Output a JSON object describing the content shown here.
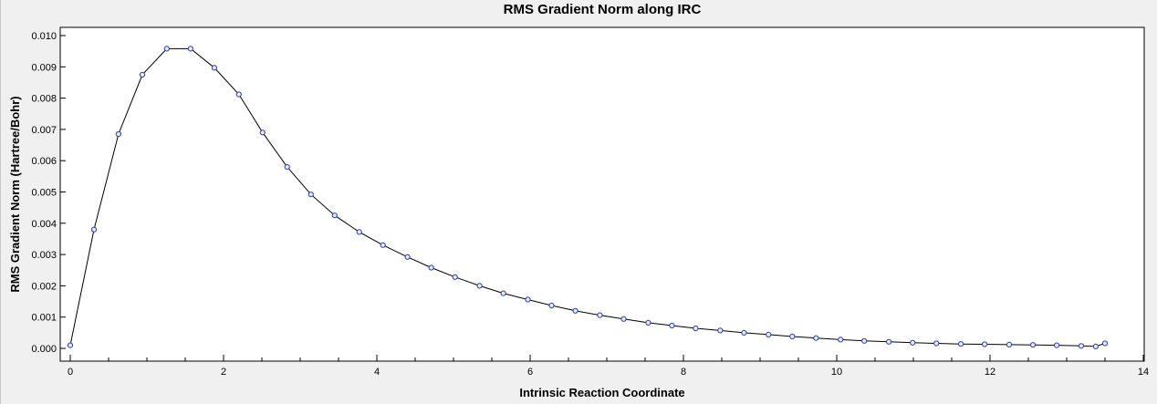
{
  "chart_data": {
    "type": "line",
    "title": "RMS Gradient Norm along IRC",
    "xlabel": "Intrinsic Reaction Coordinate",
    "ylabel": "RMS Gradient Norm (Hartree/Bohr)",
    "xlim": [
      0,
      14
    ],
    "ylim": [
      0,
      0.01
    ],
    "x_ticks": [
      0,
      2,
      4,
      6,
      8,
      10,
      12,
      14
    ],
    "x_minor_tick_step": 0.5,
    "y_ticks": [
      0.0,
      0.001,
      0.002,
      0.003,
      0.004,
      0.005,
      0.006,
      0.007,
      0.008,
      0.009,
      0.01
    ],
    "y_tick_decimals": 3,
    "grid": false,
    "legend_position": "none",
    "colors": {
      "background": "#f0f0f0",
      "plot_background": "#ffffff",
      "frame": "#000000",
      "line": "#000000",
      "marker_stroke": "#2a3cb0",
      "marker_fill": "#e6ecff",
      "tick_text": "#000000"
    },
    "series": [
      {
        "name": "RMS Gradient Norm",
        "marker": "circle",
        "x": [
          0.0,
          0.31,
          0.63,
          0.94,
          1.26,
          1.57,
          1.88,
          2.2,
          2.51,
          2.83,
          3.14,
          3.45,
          3.77,
          4.08,
          4.4,
          4.71,
          5.02,
          5.34,
          5.65,
          5.97,
          6.28,
          6.59,
          6.91,
          7.22,
          7.54,
          7.85,
          8.16,
          8.48,
          8.79,
          9.11,
          9.42,
          9.73,
          10.05,
          10.36,
          10.68,
          10.99,
          11.3,
          11.62,
          11.93,
          12.25,
          12.56,
          12.87,
          13.19,
          13.38,
          13.5
        ],
        "y": [
          0.0001,
          0.0038,
          0.00685,
          0.00875,
          0.00958,
          0.00958,
          0.00897,
          0.00812,
          0.0069,
          0.0058,
          0.00492,
          0.00425,
          0.00372,
          0.0033,
          0.00292,
          0.00258,
          0.00228,
          0.002,
          0.00176,
          0.00156,
          0.00137,
          0.0012,
          0.00106,
          0.00094,
          0.00082,
          0.00073,
          0.00064,
          0.00057,
          0.0005,
          0.00044,
          0.00038,
          0.00033,
          0.00028,
          0.00024,
          0.00021,
          0.00018,
          0.00016,
          0.00014,
          0.00013,
          0.00012,
          0.00011,
          0.0001,
          8e-05,
          6e-05,
          0.00016
        ]
      }
    ]
  }
}
